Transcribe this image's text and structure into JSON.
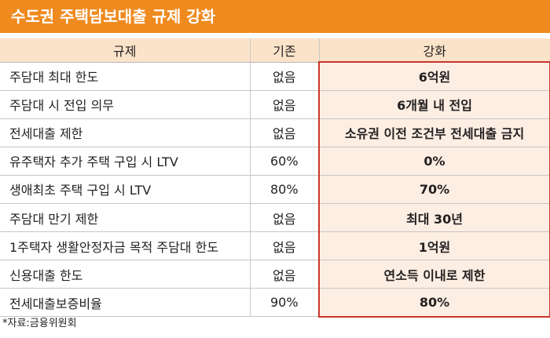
{
  "title": "수도권 주택담보대출 규제 강화",
  "columns": {
    "category": "규제",
    "before": "기존",
    "after": "강화"
  },
  "rows": [
    {
      "category": "주담대 최대 한도",
      "before": "없음",
      "after": "6억원"
    },
    {
      "category": "주담대 시 전입 의무",
      "before": "없음",
      "after": "6개월 내 전입"
    },
    {
      "category": "전세대출 제한",
      "before": "없음",
      "after": "소유권 이전 조건부 전세대출 금지"
    },
    {
      "category": "유주택자 추가 주택 구입 시 LTV",
      "before": "60%",
      "after": "0%"
    },
    {
      "category": "생애최초 주택 구입 시 LTV",
      "before": "80%",
      "after": "70%"
    },
    {
      "category": "주담대 만기 제한",
      "before": "없음",
      "after": "최대 30년"
    },
    {
      "category": "1주택자 생활안정자금 목적 주담대 한도",
      "before": "없음",
      "after": "1억원"
    },
    {
      "category": "신용대출 한도",
      "before": "없음",
      "after": "연소득 이내로 제한"
    },
    {
      "category": "전세대출보증비율",
      "before": "90%",
      "after": "80%"
    }
  ],
  "source": "*자료:금융위원회",
  "colors": {
    "header_bar": "#ef8a1f",
    "column_header": "#fbe3c9",
    "highlight_fill": "#fdeee3",
    "highlight_border": "#c9352c"
  }
}
